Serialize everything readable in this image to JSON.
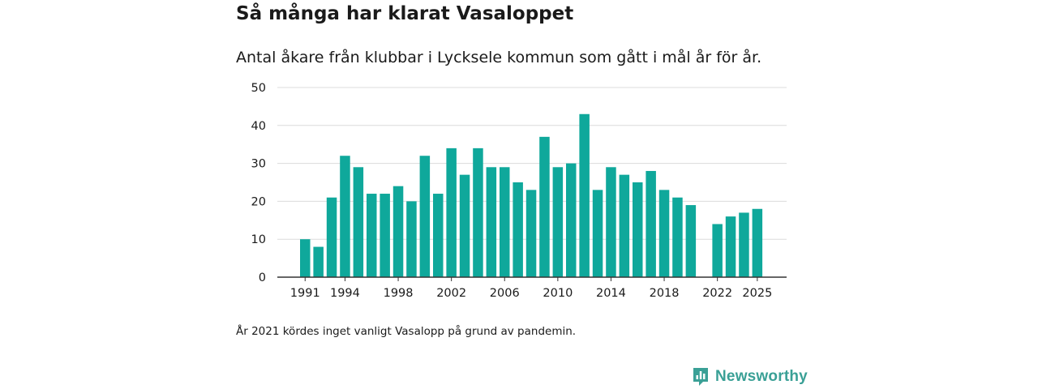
{
  "colors": {
    "bar": "#0fa89b",
    "grid": "#dcdcdc",
    "axis": "#333333",
    "brand": "#3aa096"
  },
  "chart_data": {
    "type": "bar",
    "title": "Så många har klarat Vasaloppet",
    "subtitle": "Antal åkare från klubbar i Lycksele kommun som gått i mål år för år.",
    "xlabel": "",
    "ylabel": "",
    "ylim": [
      0,
      50
    ],
    "yticks": [
      0,
      10,
      20,
      30,
      40,
      50
    ],
    "xticks": [
      1991,
      1994,
      1998,
      2002,
      2006,
      2010,
      2014,
      2018,
      2022,
      2025
    ],
    "grid": true,
    "categories": [
      1991,
      1992,
      1993,
      1994,
      1995,
      1996,
      1997,
      1998,
      1999,
      2000,
      2001,
      2002,
      2003,
      2004,
      2005,
      2006,
      2007,
      2008,
      2009,
      2010,
      2011,
      2012,
      2013,
      2014,
      2015,
      2016,
      2017,
      2018,
      2019,
      2020,
      2021,
      2022,
      2023,
      2024,
      2025
    ],
    "values": [
      10,
      8,
      21,
      32,
      29,
      22,
      22,
      24,
      20,
      32,
      22,
      34,
      27,
      34,
      29,
      29,
      25,
      23,
      37,
      29,
      30,
      43,
      23,
      29,
      27,
      25,
      28,
      23,
      21,
      19,
      null,
      14,
      16,
      17,
      18
    ],
    "note": "År 2021 kördes inget vanligt Vasalopp på grund av pandemin."
  },
  "logo": {
    "text": "Newsworthy",
    "icon": "newsworthy-logo-icon"
  }
}
